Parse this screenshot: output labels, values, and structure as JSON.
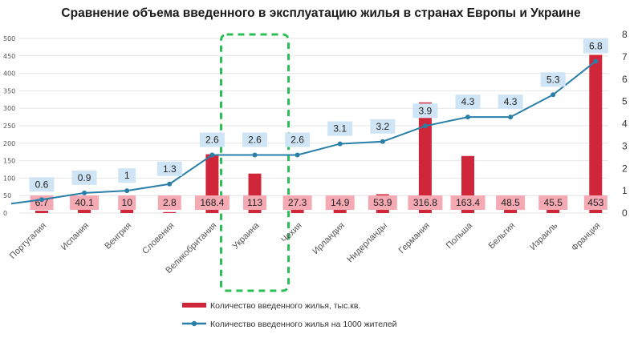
{
  "title": "Сравнение объема введенного в эксплуатацию жилья в странах Европы и Украине",
  "chart_data": {
    "type": "bar",
    "categories": [
      "Португалия",
      "Испания",
      "Венгрия",
      "Словения",
      "Великобритания",
      "Украина",
      "Чехия",
      "Ирландия",
      "Нидерланды",
      "Германия",
      "Польша",
      "Бельгия",
      "Израиль",
      "Франция"
    ],
    "series": [
      {
        "name": "Количество введенного жилья, тыс.кв.",
        "type": "bar",
        "axis": "left",
        "color": "#d0263a",
        "values": [
          6.7,
          40.1,
          10,
          2.8,
          168.4,
          113,
          27.3,
          14.9,
          53.9,
          316.8,
          163.4,
          48.5,
          45.5,
          453
        ],
        "labels": [
          "6.7",
          "40.1",
          "10",
          "2.8",
          "168.4",
          "113",
          "27.3",
          "14.9",
          "53.9",
          "316.8",
          "163.4",
          "48.5",
          "45.5",
          "453"
        ]
      },
      {
        "name": "Количество введенного жилья на 1000 жителей",
        "type": "line",
        "axis": "right",
        "color": "#2a7fa8",
        "values": [
          0.6,
          0.9,
          1,
          1.3,
          2.6,
          2.6,
          2.6,
          3.1,
          3.2,
          3.9,
          4.3,
          4.3,
          5.3,
          6.8
        ],
        "labels": [
          "0.6",
          "0.9",
          "1",
          "1.3",
          "2.6",
          "2.6",
          "2.6",
          "3.1",
          "3.2",
          "3.9",
          "4.3",
          "4.3",
          "5.3",
          "6.8"
        ]
      }
    ],
    "y_left": {
      "ylim": [
        0,
        500
      ],
      "ticks": [
        "0",
        "50",
        "100",
        "150",
        "200",
        "250",
        "300",
        "350",
        "400",
        "450",
        "500"
      ]
    },
    "y_right": {
      "ylim": [
        0,
        8
      ],
      "ticks": [
        "0",
        "1",
        "2",
        "3",
        "4",
        "5",
        "6",
        "7",
        "8"
      ]
    },
    "grid": true,
    "legend_position": "bottom",
    "highlight": {
      "category": "Украина",
      "style": "dashed-green-box"
    },
    "colors": {
      "bar": "#d0263a",
      "bar_label_bg": "#f4a9b3",
      "line": "#2a7fa8",
      "line_label_bg": "#cfe5f5",
      "grid": "#e6e6e6",
      "highlight": "#2bbf55"
    }
  }
}
